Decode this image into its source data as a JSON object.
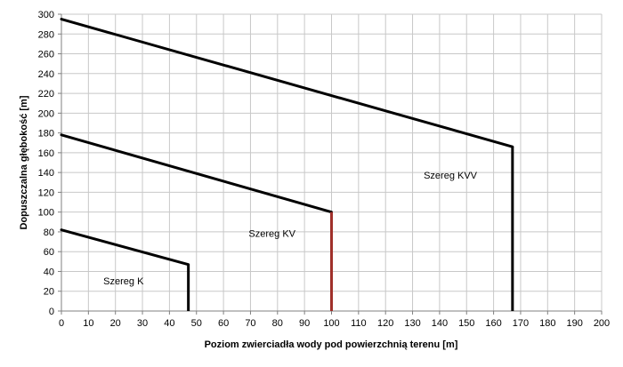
{
  "chart_data": {
    "type": "line",
    "title": "",
    "xlabel": "Poziom zwierciadła wody pod powierzchnią terenu [m]",
    "ylabel": "Dopuszczalna głębokość [m]",
    "xlim": [
      0,
      200
    ],
    "ylim": [
      0,
      300
    ],
    "x_ticks": [
      0,
      10,
      20,
      30,
      40,
      50,
      60,
      70,
      80,
      90,
      100,
      110,
      120,
      130,
      140,
      150,
      160,
      170,
      180,
      190,
      200
    ],
    "y_ticks": [
      0,
      20,
      40,
      60,
      80,
      100,
      120,
      140,
      160,
      180,
      200,
      220,
      240,
      260,
      280,
      300
    ],
    "grid": true,
    "legend": "none",
    "series": [
      {
        "name": "Szereg K",
        "color": "#000000",
        "points": [
          [
            0,
            82
          ],
          [
            47,
            47
          ],
          [
            47,
            0
          ]
        ]
      },
      {
        "name": "Szereg KV",
        "color": "#000000",
        "vertical_color": "#a0302a",
        "points": [
          [
            0,
            178
          ],
          [
            100,
            100
          ],
          [
            100,
            0
          ]
        ]
      },
      {
        "name": "Szereg KVV",
        "color": "#000000",
        "points": [
          [
            0,
            295
          ],
          [
            167,
            166
          ],
          [
            167,
            0
          ]
        ]
      }
    ],
    "annotations": [
      {
        "text": "Szereg K",
        "x": 23,
        "y": 27
      },
      {
        "text": "Szereg KV",
        "x": 78,
        "y": 75
      },
      {
        "text": "Szereg KVV",
        "x": 144,
        "y": 134
      }
    ]
  }
}
